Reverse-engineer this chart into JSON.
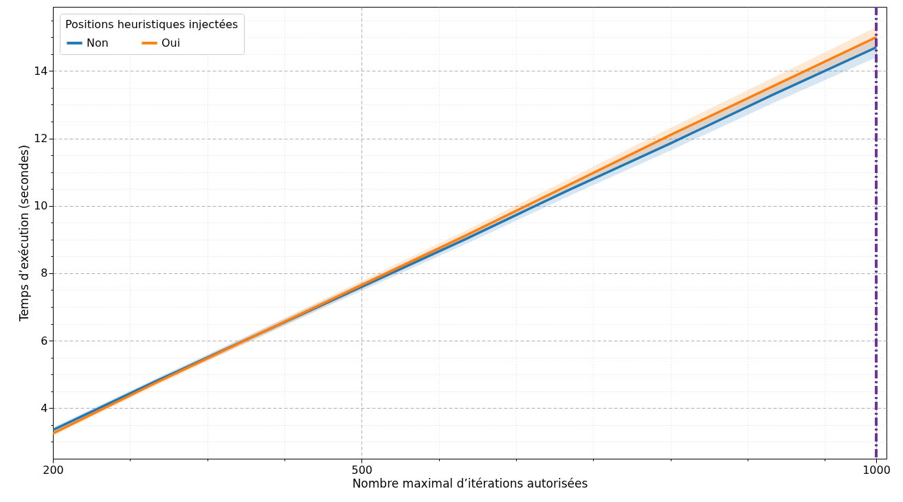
{
  "chart_data": {
    "type": "line",
    "xlabel": "Nombre maximal d’itérations autorisées",
    "ylabel": "Temps d’exécution (secondes)",
    "legend_title": "Positions heuristiques injectées",
    "x": [
      200,
      300,
      400,
      500,
      600,
      700,
      800,
      900,
      1000
    ],
    "series": [
      {
        "name": "Non",
        "color": "#1f77b4",
        "values": [
          3.35,
          4.8,
          6.2,
          7.6,
          9.0,
          10.45,
          11.85,
          13.3,
          14.7
        ],
        "lower": [
          3.27,
          4.72,
          6.1,
          7.48,
          8.85,
          10.27,
          11.64,
          13.05,
          14.4
        ],
        "upper": [
          3.43,
          4.88,
          6.3,
          7.72,
          9.15,
          10.63,
          12.06,
          13.55,
          15.0
        ]
      },
      {
        "name": "Oui",
        "color": "#ff7f0e",
        "values": [
          3.25,
          4.75,
          6.2,
          7.65,
          9.1,
          10.6,
          12.1,
          13.55,
          15.0
        ],
        "lower": [
          3.17,
          4.67,
          6.1,
          7.53,
          8.95,
          10.42,
          11.89,
          13.3,
          14.7
        ],
        "upper": [
          3.33,
          4.83,
          6.3,
          7.77,
          9.25,
          10.78,
          12.31,
          13.8,
          15.3
        ]
      }
    ],
    "xlim": [
      200,
      1010
    ],
    "ylim": [
      2.5,
      15.9
    ],
    "xticks": [
      200,
      {
        "value": 275,
        "label": null
      },
      {
        "value": 350,
        "label": null
      },
      {
        "value": 425,
        "label": null
      },
      500,
      {
        "value": 575,
        "label": null
      },
      {
        "value": 650,
        "label": null
      },
      {
        "value": 725,
        "label": null
      },
      {
        "value": 800,
        "label": null
      },
      {
        "value": 875,
        "label": null
      },
      {
        "value": 950,
        "label": null
      },
      1000
    ],
    "yticks": [
      {
        "value": 3,
        "label": null
      },
      {
        "value": 3.5,
        "label": null
      },
      4,
      {
        "value": 4.5,
        "label": null
      },
      {
        "value": 5,
        "label": null
      },
      {
        "value": 5.5,
        "label": null
      },
      6,
      {
        "value": 6.5,
        "label": null
      },
      {
        "value": 7,
        "label": null
      },
      {
        "value": 7.5,
        "label": null
      },
      8,
      {
        "value": 8.5,
        "label": null
      },
      {
        "value": 9,
        "label": null
      },
      {
        "value": 9.5,
        "label": null
      },
      10,
      {
        "value": 10.5,
        "label": null
      },
      {
        "value": 11,
        "label": null
      },
      {
        "value": 11.5,
        "label": null
      },
      12,
      {
        "value": 12.5,
        "label": null
      },
      {
        "value": 13,
        "label": null
      },
      {
        "value": 13.5,
        "label": null
      },
      14,
      {
        "value": 14.5,
        "label": null
      },
      {
        "value": 15,
        "label": null
      },
      {
        "value": 15.5,
        "label": null
      }
    ],
    "ref_lines": [
      {
        "axis": "x",
        "value": 1000,
        "color": "#7030a0",
        "line_style": "dashdot"
      }
    ],
    "grid": true,
    "legend": "top left"
  }
}
